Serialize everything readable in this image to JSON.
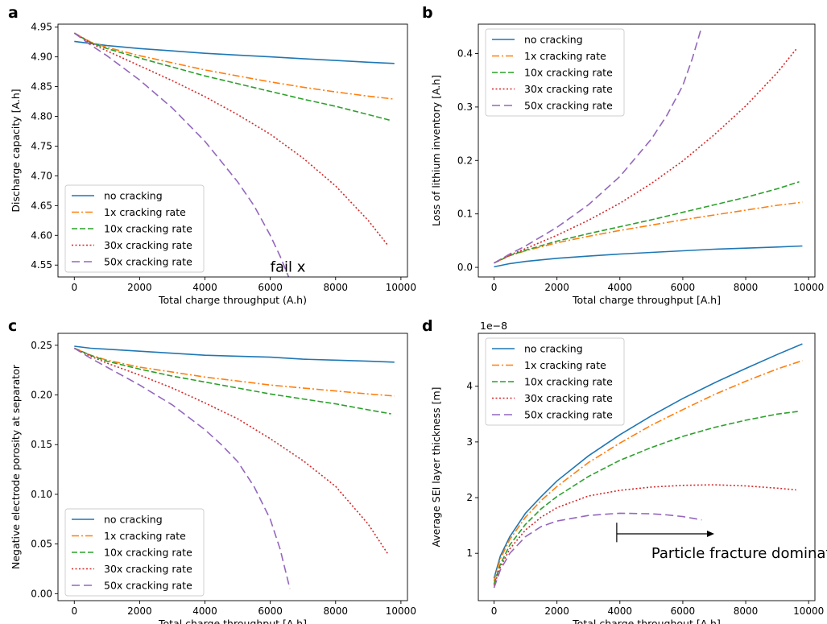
{
  "colors": {
    "no_cracking": "#1f77b4",
    "1x": "#ff7f0e",
    "10x": "#2ca02c",
    "30x": "#d62728",
    "50x": "#9467bd"
  },
  "chart_data": [
    {
      "panel": "a",
      "type": "line",
      "xlabel": "Total charge throughput (A.h)",
      "ylabel": "Discharge capacity [A.h]",
      "xlim": [
        -500,
        10200
      ],
      "ylim": [
        4.53,
        4.955
      ],
      "xticks": [
        "0",
        "2000",
        "4000",
        "6000",
        "8000",
        "10000"
      ],
      "yticks": [
        "4.55",
        "4.60",
        "4.65",
        "4.70",
        "4.75",
        "4.80",
        "4.85",
        "4.90",
        "4.95"
      ],
      "legend": "lower-left",
      "annotations": [
        {
          "text": "fail x",
          "x": 6000,
          "y": 4.547
        }
      ],
      "series": [
        {
          "name": "no cracking",
          "style": "solid",
          "x": [
            0,
            1000,
            2000,
            3000,
            4000,
            5000,
            6000,
            7000,
            8000,
            9000,
            9800
          ],
          "y": [
            4.926,
            4.919,
            4.914,
            4.91,
            4.906,
            4.903,
            4.9,
            4.897,
            4.894,
            4.891,
            4.889
          ]
        },
        {
          "name": "1x cracking rate",
          "style": "dashdot",
          "x": [
            0,
            500,
            1000,
            2000,
            3000,
            4000,
            5000,
            6000,
            7000,
            8000,
            9000,
            9800
          ],
          "y": [
            4.94,
            4.925,
            4.916,
            4.902,
            4.89,
            4.878,
            4.868,
            4.858,
            4.849,
            4.841,
            4.834,
            4.829
          ]
        },
        {
          "name": "10x cracking rate",
          "style": "dashed",
          "x": [
            0,
            500,
            1000,
            2000,
            3000,
            4000,
            5000,
            6000,
            7000,
            8000,
            9000,
            9700
          ],
          "y": [
            4.94,
            4.924,
            4.914,
            4.898,
            4.883,
            4.868,
            4.855,
            4.842,
            4.829,
            4.817,
            4.803,
            4.793
          ]
        },
        {
          "name": "30x cracking rate",
          "style": "dotted",
          "x": [
            0,
            500,
            1000,
            2000,
            3000,
            4000,
            5000,
            6000,
            7000,
            8000,
            9000,
            9600
          ],
          "y": [
            4.94,
            4.923,
            4.91,
            4.885,
            4.86,
            4.833,
            4.803,
            4.77,
            4.73,
            4.683,
            4.625,
            4.583
          ]
        },
        {
          "name": "50x cracking rate",
          "style": "dashed-long",
          "x": [
            0,
            500,
            1000,
            2000,
            3000,
            4000,
            5000,
            5500,
            6000,
            6300,
            6600
          ],
          "y": [
            4.94,
            4.92,
            4.902,
            4.861,
            4.814,
            4.758,
            4.69,
            4.65,
            4.6,
            4.565,
            4.525
          ]
        }
      ]
    },
    {
      "panel": "b",
      "type": "line",
      "xlabel": "Total charge throughput [A.h]",
      "ylabel": "Loss of lithium inventory [A.h]",
      "xlim": [
        -500,
        10200
      ],
      "ylim": [
        -0.018,
        0.455
      ],
      "xticks": [
        "0",
        "2000",
        "4000",
        "6000",
        "8000",
        "10000"
      ],
      "yticks": [
        "0.0",
        "0.1",
        "0.2",
        "0.3",
        "0.4"
      ],
      "legend": "upper-left",
      "series": [
        {
          "name": "no cracking",
          "style": "solid",
          "x": [
            0,
            500,
            1000,
            2000,
            3000,
            4000,
            5000,
            6000,
            7000,
            8000,
            9000,
            9800
          ],
          "y": [
            0.001,
            0.007,
            0.011,
            0.017,
            0.021,
            0.025,
            0.028,
            0.031,
            0.034,
            0.036,
            0.038,
            0.04
          ]
        },
        {
          "name": "1x cracking rate",
          "style": "dashdot",
          "x": [
            0,
            500,
            1000,
            2000,
            3000,
            4000,
            5000,
            6000,
            7000,
            8000,
            9000,
            9800
          ],
          "y": [
            0.008,
            0.022,
            0.031,
            0.046,
            0.058,
            0.069,
            0.079,
            0.089,
            0.098,
            0.107,
            0.116,
            0.122
          ]
        },
        {
          "name": "10x cracking rate",
          "style": "dashed",
          "x": [
            0,
            500,
            1000,
            2000,
            3000,
            4000,
            5000,
            6000,
            7000,
            8000,
            9000,
            9700
          ],
          "y": [
            0.008,
            0.022,
            0.032,
            0.049,
            0.063,
            0.076,
            0.089,
            0.103,
            0.117,
            0.131,
            0.147,
            0.16
          ]
        },
        {
          "name": "30x cracking rate",
          "style": "dotted",
          "x": [
            0,
            500,
            1000,
            2000,
            3000,
            4000,
            5000,
            6000,
            7000,
            8000,
            9000,
            9600
          ],
          "y": [
            0.008,
            0.023,
            0.035,
            0.06,
            0.088,
            0.12,
            0.157,
            0.199,
            0.248,
            0.302,
            0.364,
            0.408
          ]
        },
        {
          "name": "50x cracking rate",
          "style": "dashed-long",
          "x": [
            0,
            500,
            1000,
            2000,
            3000,
            4000,
            5000,
            5500,
            6000,
            6300,
            6600
          ],
          "y": [
            0.008,
            0.025,
            0.04,
            0.075,
            0.117,
            0.17,
            0.24,
            0.285,
            0.34,
            0.39,
            0.45
          ]
        }
      ]
    },
    {
      "panel": "c",
      "type": "line",
      "xlabel": "Total charge throughput [A.h]",
      "ylabel": "Negative electrode porosity at separator",
      "xlim": [
        -500,
        10200
      ],
      "ylim": [
        -0.007,
        0.262
      ],
      "xticks": [
        "0",
        "2000",
        "4000",
        "6000",
        "8000",
        "10000"
      ],
      "yticks": [
        "0.00",
        "0.05",
        "0.10",
        "0.15",
        "0.20",
        "0.25"
      ],
      "legend": "lower-left",
      "series": [
        {
          "name": "no cracking",
          "style": "solid",
          "x": [
            0,
            500,
            1000,
            2000,
            3000,
            4000,
            5000,
            6000,
            7000,
            8000,
            9000,
            9800
          ],
          "y": [
            0.249,
            0.247,
            0.246,
            0.244,
            0.242,
            0.24,
            0.239,
            0.238,
            0.236,
            0.235,
            0.234,
            0.233
          ]
        },
        {
          "name": "1x cracking rate",
          "style": "dashdot",
          "x": [
            0,
            500,
            1000,
            2000,
            3000,
            4000,
            5000,
            6000,
            7000,
            8000,
            9000,
            9800
          ],
          "y": [
            0.247,
            0.24,
            0.235,
            0.228,
            0.223,
            0.218,
            0.214,
            0.21,
            0.207,
            0.204,
            0.201,
            0.199
          ]
        },
        {
          "name": "10x cracking rate",
          "style": "dashed",
          "x": [
            0,
            500,
            1000,
            2000,
            3000,
            4000,
            5000,
            6000,
            7000,
            8000,
            9000,
            9700
          ],
          "y": [
            0.247,
            0.24,
            0.234,
            0.226,
            0.219,
            0.213,
            0.207,
            0.201,
            0.196,
            0.191,
            0.185,
            0.181
          ]
        },
        {
          "name": "30x cracking rate",
          "style": "dotted",
          "x": [
            0,
            500,
            1000,
            2000,
            3000,
            4000,
            5000,
            6000,
            7000,
            8000,
            9000,
            9600
          ],
          "y": [
            0.247,
            0.239,
            0.232,
            0.22,
            0.207,
            0.192,
            0.176,
            0.156,
            0.134,
            0.108,
            0.07,
            0.04
          ]
        },
        {
          "name": "50x cracking rate",
          "style": "dashed-long",
          "x": [
            0,
            500,
            1000,
            2000,
            3000,
            4000,
            4500,
            5000,
            5500,
            6000,
            6300,
            6600
          ],
          "y": [
            0.247,
            0.237,
            0.228,
            0.21,
            0.19,
            0.165,
            0.15,
            0.133,
            0.108,
            0.075,
            0.045,
            0.005
          ]
        }
      ]
    },
    {
      "panel": "d",
      "type": "line",
      "xlabel": "Total charge throughout [A.h]",
      "ylabel": "Average SEI layer thickness [m]",
      "yoffset": "1e−8",
      "xlim": [
        -500,
        10200
      ],
      "ylim": [
        0.15,
        4.95
      ],
      "xticks": [
        "0",
        "2000",
        "4000",
        "6000",
        "8000",
        "10000"
      ],
      "yticks": [
        "1",
        "2",
        "3",
        "4"
      ],
      "legend": "upper-left",
      "annotations": [
        {
          "text": "Particle fracture dominates",
          "x": 5000,
          "y": 1.0
        }
      ],
      "arrow": {
        "x0": 3900,
        "x1": 7000,
        "y": 1.35
      },
      "marker": {
        "x": 3900,
        "y0": 1.2,
        "y1": 1.55
      },
      "series": [
        {
          "name": "no cracking",
          "style": "solid",
          "x": [
            0,
            200,
            500,
            1000,
            1500,
            2000,
            3000,
            4000,
            5000,
            6000,
            7000,
            8000,
            9000,
            9800
          ],
          "y": [
            0.55,
            0.95,
            1.3,
            1.72,
            2.02,
            2.3,
            2.75,
            3.13,
            3.47,
            3.78,
            4.06,
            4.32,
            4.57,
            4.76
          ]
        },
        {
          "name": "1x cracking rate",
          "style": "dashdot",
          "x": [
            0,
            200,
            500,
            1000,
            1500,
            2000,
            3000,
            4000,
            5000,
            6000,
            7000,
            8000,
            9000,
            9800
          ],
          "y": [
            0.5,
            0.9,
            1.25,
            1.65,
            1.95,
            2.2,
            2.63,
            2.98,
            3.3,
            3.58,
            3.85,
            4.09,
            4.31,
            4.46
          ]
        },
        {
          "name": "10x cracking rate",
          "style": "dashed",
          "x": [
            0,
            200,
            500,
            1000,
            1500,
            2000,
            3000,
            4000,
            5000,
            6000,
            7000,
            8000,
            9000,
            9700
          ],
          "y": [
            0.45,
            0.8,
            1.15,
            1.52,
            1.8,
            2.02,
            2.38,
            2.67,
            2.9,
            3.1,
            3.26,
            3.39,
            3.5,
            3.55
          ]
        },
        {
          "name": "30x cracking rate",
          "style": "dotted",
          "x": [
            0,
            200,
            500,
            1000,
            1500,
            2000,
            3000,
            4000,
            5000,
            6000,
            7000,
            8000,
            9000,
            9600
          ],
          "y": [
            0.42,
            0.75,
            1.08,
            1.42,
            1.65,
            1.82,
            2.03,
            2.13,
            2.19,
            2.22,
            2.23,
            2.21,
            2.17,
            2.14
          ]
        },
        {
          "name": "50x cracking rate",
          "style": "dashed-long",
          "x": [
            0,
            200,
            500,
            1000,
            1500,
            2000,
            3000,
            4000,
            5000,
            5500,
            6000,
            6300,
            6600
          ],
          "y": [
            0.38,
            0.7,
            1.0,
            1.3,
            1.48,
            1.58,
            1.68,
            1.72,
            1.71,
            1.69,
            1.66,
            1.63,
            1.6
          ]
        }
      ]
    }
  ]
}
